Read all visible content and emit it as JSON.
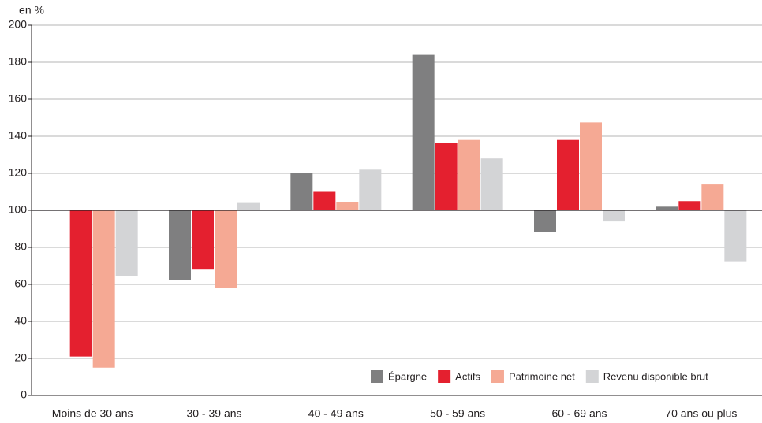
{
  "chart_data": {
    "type": "bar",
    "y_label": "en %",
    "categories": [
      "Moins de 30 ans",
      "30 - 39 ans",
      "40 - 49 ans",
      "50 - 59 ans",
      "60 - 69 ans",
      "70 ans ou plus"
    ],
    "series": [
      {
        "name": "Épargne",
        "color": "#7f7f80",
        "values": [
          null,
          62.5,
          120,
          184,
          88.5,
          102
        ]
      },
      {
        "name": "Actifs",
        "color": "#e4202f",
        "values": [
          21,
          68,
          110,
          136.5,
          138,
          105
        ]
      },
      {
        "name": "Patrimoine net",
        "color": "#f5a994",
        "values": [
          15,
          58,
          104.5,
          138,
          147.5,
          114
        ]
      },
      {
        "name": "Revenu disponible brut",
        "color": "#d3d4d6",
        "values": [
          64.5,
          104,
          122,
          128,
          94,
          72.5
        ]
      }
    ],
    "baseline": 100,
    "ylim": [
      0,
      200
    ],
    "yticks": [
      0,
      20,
      40,
      60,
      80,
      100,
      120,
      140,
      160,
      180,
      200
    ],
    "grid": true,
    "legend": "bottom-right"
  }
}
